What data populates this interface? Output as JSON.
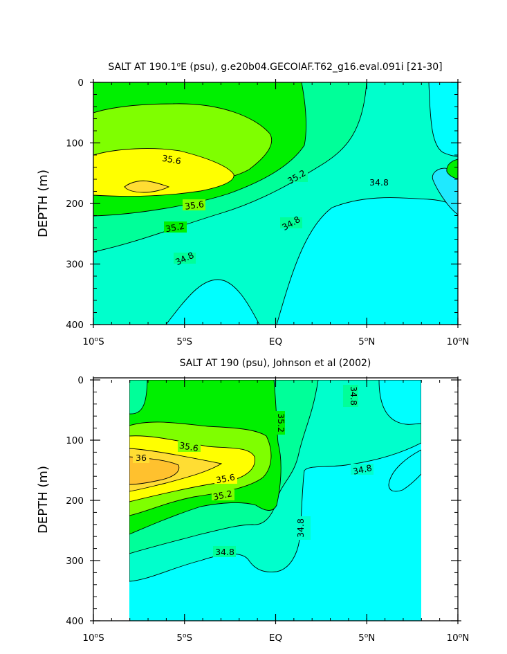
{
  "chart_data": [
    {
      "type": "contour",
      "panel": "top",
      "title": "SALT AT 190.1°E (psu), g.e20b04.GECOIAF.T62_g16.eval.091i [21-30]",
      "title_prefix": "SALT AT 190.1",
      "title_superscript": "o",
      "title_suffix": "E (psu), g.e20b04.GECOIAF.T62_g16.eval.091i [21-30]",
      "ylabel": "DEPTH (m)",
      "xlabel": "",
      "xlim": [
        -10,
        10
      ],
      "ylim": [
        400,
        0
      ],
      "x_ticks": [
        -10,
        -5,
        0,
        5,
        10
      ],
      "x_tick_labels": [
        "10°S",
        "5°S",
        "EQ",
        "5°N",
        "10°N"
      ],
      "y_ticks": [
        0,
        100,
        200,
        300,
        400
      ],
      "y_tick_labels": [
        "0",
        "100",
        "200",
        "300",
        "400"
      ],
      "data_extent_x": [
        -10,
        10
      ],
      "contour_levels": [
        34.6,
        34.8,
        35.0,
        35.2,
        35.4,
        35.6,
        35.8,
        36.0
      ],
      "contour_labels": [
        {
          "text": "35.6",
          "x": -5.9,
          "y": 128
        },
        {
          "text": "35.2",
          "x": 1.2,
          "y": 156
        },
        {
          "text": "34.8",
          "x": 6.0,
          "y": 167
        },
        {
          "text": "35.6",
          "x": -4.7,
          "y": 203
        },
        {
          "text": "35.2",
          "x": -6.0,
          "y": 240
        },
        {
          "text": "34.8",
          "x": 0.8,
          "y": 232
        },
        {
          "text": "34.8",
          "x": -5.0,
          "y": 285
        }
      ],
      "labels": [
        "35.6",
        "35.2",
        "34.8",
        "35.6",
        "35.2",
        "34.8",
        "34.8"
      ],
      "colors": {
        "lt34.6": "#00ffff",
        "34.6": "#1fe9ff",
        "34.8": "#00ffcc",
        "35.0": "#00ff99",
        "35.2": "#00f000",
        "35.4": "#7fff00",
        "35.6": "#ffff00",
        "35.8": "#ffdd33",
        "36.0": "#ffc12e"
      }
    },
    {
      "type": "contour",
      "panel": "bottom",
      "title": "SALT AT 190 (psu), Johnson et al (2002)",
      "ylabel": "DEPTH (m)",
      "xlabel": "",
      "xlim": [
        -10,
        10
      ],
      "ylim": [
        400,
        0
      ],
      "x_ticks": [
        -10,
        -5,
        0,
        5,
        10
      ],
      "x_tick_labels": [
        "10°S",
        "5°S",
        "EQ",
        "5°N",
        "10°N"
      ],
      "y_ticks": [
        0,
        100,
        200,
        300,
        400
      ],
      "y_tick_labels": [
        "0",
        "100",
        "200",
        "300",
        "400"
      ],
      "data_extent_x": [
        -8,
        8
      ],
      "contour_levels": [
        34.8,
        35.0,
        35.2,
        35.4,
        35.6,
        35.8,
        36.0
      ],
      "contour_labels": [
        {
          "text": "34.8",
          "x": 4.1,
          "y": 28
        },
        {
          "text": "35.2",
          "x": 0.2,
          "y": 80
        },
        {
          "text": "35.6",
          "x": -4.7,
          "y": 113
        },
        {
          "text": "36",
          "x": -7.4,
          "y": 130
        },
        {
          "text": "34.8",
          "x": 4.8,
          "y": 150
        },
        {
          "text": "35.6",
          "x": -2.7,
          "y": 160
        },
        {
          "text": "35.2",
          "x": -2.9,
          "y": 187
        },
        {
          "text": "34.8",
          "x": 1.5,
          "y": 245
        },
        {
          "text": "34.8",
          "x": -2.8,
          "y": 285
        }
      ],
      "labels": [
        "34.8",
        "35.2",
        "35.6",
        "36",
        "34.8",
        "35.6",
        "35.2",
        "34.8",
        "34.8"
      ],
      "colors": {
        "lt34.8": "#00ffff",
        "34.8": "#00ffcc",
        "35.0": "#00ff99",
        "35.2": "#00f000",
        "35.4": "#7fff00",
        "35.6": "#ffff00",
        "35.8": "#ffdd33",
        "36.0": "#ffc12e"
      }
    }
  ]
}
